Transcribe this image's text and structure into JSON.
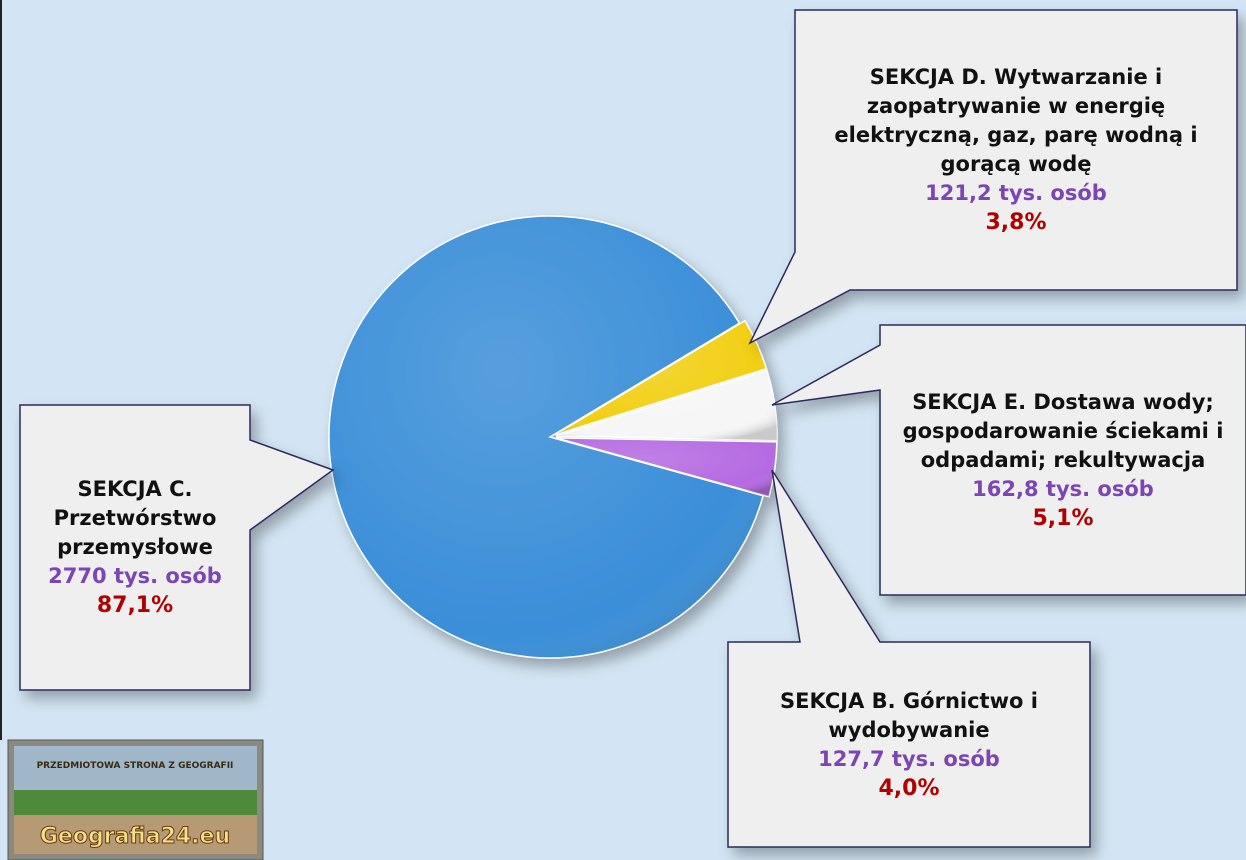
{
  "chart_data": {
    "type": "pie",
    "categories": [
      "SEKCJA D. Wytwarzanie i zaopatrywanie w energię elektryczną, gaz, parę wodną i gorącą wodę",
      "SEKCJA E. Dostawa wody; gospodarowanie ściekami i odpadami; rekultywacja",
      "SEKCJA B. Górnictwo i wydobywanie",
      "SEKCJA C. Przetwórstwo przemysłowe"
    ],
    "values": [
      3.8,
      5.1,
      4.0,
      87.1
    ],
    "value_labels": [
      "3,8%",
      "5,1%",
      "4,0%",
      "87,1%"
    ],
    "count_labels": [
      "121,2 tys. osób",
      "162,8 tys. osób",
      "127,7 tys. osób",
      "2770 tys. osób"
    ],
    "colors": [
      "#f2cf14",
      "#f6f6f6",
      "#b56ae2",
      "#3a8ed8"
    ]
  },
  "logo": {
    "top_text": "PRZEDMIOTOWA STRONA Z GEOGRAFII",
    "text": "Geografia24.eu"
  }
}
